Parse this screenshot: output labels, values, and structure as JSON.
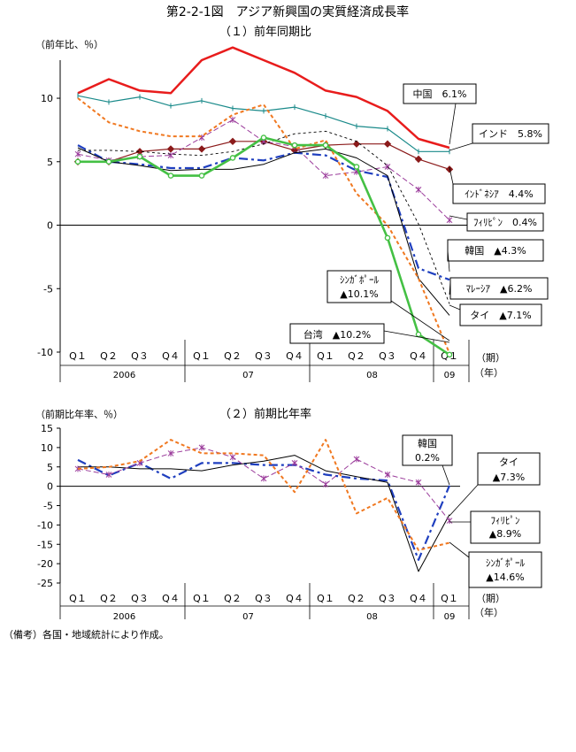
{
  "figure_title": "第2-2-1図　アジア新興国の実質経済成長率",
  "note": "（備考）各国・地域統計により作成。",
  "chart_data": [
    {
      "type": "line",
      "title": "（１）前年同期比",
      "ylabel": "（前年比、％）",
      "ylim": [
        -10,
        13
      ],
      "yticks": [
        10,
        5,
        0,
        -5,
        -10
      ],
      "grid": false,
      "zero_line": true,
      "categories": [
        "Q１",
        "Q２",
        "Q３",
        "Q４",
        "Q１",
        "Q２",
        "Q３",
        "Q４",
        "Q１",
        "Q２",
        "Q３",
        "Q４",
        "Q１"
      ],
      "year_labels": [
        {
          "label": "2006",
          "from": 0,
          "to": 3
        },
        {
          "label": "07",
          "from": 4,
          "to": 7
        },
        {
          "label": "08",
          "from": 8,
          "to": 11
        },
        {
          "label": "09",
          "from": 12,
          "to": 12
        }
      ],
      "period_label": "（期）",
      "year_unit_label": "（年）",
      "series": [
        {
          "name": "中国",
          "color": "#e81c1c",
          "width": 2.5,
          "dash": "",
          "marker": "none",
          "values": [
            10.4,
            11.5,
            10.6,
            10.4,
            13.0,
            14.0,
            13.0,
            12.0,
            10.6,
            10.1,
            9.0,
            6.8,
            6.1
          ]
        },
        {
          "name": "インド",
          "color": "#1a8a8a",
          "width": 1.2,
          "dash": "",
          "marker": "tick",
          "values": [
            10.2,
            9.7,
            10.1,
            9.4,
            9.8,
            9.2,
            9.0,
            9.3,
            8.6,
            7.8,
            7.6,
            5.8,
            5.8
          ]
        },
        {
          "name": "インドネシア",
          "color": "#8b1a1a",
          "width": 1.2,
          "dash": "",
          "marker": "diamond",
          "values": [
            5.0,
            5.0,
            5.8,
            6.0,
            6.0,
            6.6,
            6.6,
            5.9,
            6.3,
            6.4,
            6.4,
            5.2,
            4.4
          ]
        },
        {
          "name": "フィリピン",
          "color": "#9b3c9b",
          "width": 1.0,
          "dash": "6,3",
          "marker": "star",
          "values": [
            5.6,
            5.1,
            5.4,
            5.5,
            6.9,
            8.3,
            6.6,
            6.2,
            3.9,
            4.2,
            4.6,
            2.8,
            0.4
          ]
        },
        {
          "name": "韓国",
          "color": "#1f3fbf",
          "width": 2.2,
          "dash": "10,4,3,4",
          "marker": "none",
          "values": [
            6.3,
            5.0,
            4.8,
            4.5,
            4.5,
            5.3,
            5.1,
            5.7,
            5.5,
            4.3,
            3.8,
            -3.4,
            -4.3
          ]
        },
        {
          "name": "マレーシア",
          "color": "#000000",
          "width": 0.9,
          "dash": "3,3",
          "marker": "none",
          "values": [
            5.9,
            5.9,
            5.8,
            5.6,
            5.5,
            5.8,
            6.4,
            7.2,
            7.4,
            6.6,
            4.7,
            0.1,
            -6.2
          ]
        },
        {
          "name": "タイ",
          "color": "#000000",
          "width": 1.0,
          "dash": "",
          "marker": "none",
          "values": [
            6.1,
            5.0,
            4.7,
            4.3,
            4.4,
            4.4,
            4.8,
            5.7,
            6.0,
            5.3,
            3.9,
            -4.2,
            -7.1
          ]
        },
        {
          "name": "シンガポール",
          "color": "#f07820",
          "width": 2.0,
          "dash": "4,3",
          "marker": "none",
          "values": [
            10.0,
            8.1,
            7.4,
            7.0,
            7.0,
            8.7,
            9.5,
            6.0,
            6.7,
            2.5,
            0.0,
            -4.2,
            -10.1
          ]
        },
        {
          "name": "台湾",
          "color": "#44c044",
          "width": 2.6,
          "dash": "",
          "marker": "circle",
          "values": [
            5.0,
            5.0,
            5.4,
            3.9,
            3.9,
            5.3,
            6.9,
            6.3,
            6.3,
            4.6,
            -1.0,
            -8.6,
            -10.2
          ]
        }
      ],
      "labels": [
        {
          "text": "中国　6.1%"
        },
        {
          "text": "インド　5.8%"
        },
        {
          "text": "ｲﾝﾄﾞﾈｼｱ　4.4%"
        },
        {
          "text": "ﾌｨﾘﾋﾟﾝ　0.4%"
        },
        {
          "text": "韓国　▲4.3%"
        },
        {
          "text": "ｼﾝｶﾞﾎﾟｰﾙ"
        },
        {
          "text": "▲10.1%"
        },
        {
          "text": "ﾏﾚｰｼｱ　▲6.2%"
        },
        {
          "text": "タイ　▲7.1%"
        },
        {
          "text": "台湾　▲10.2%"
        }
      ]
    },
    {
      "type": "line",
      "title": "（２）前期比年率",
      "ylabel": "（前期比年率、％）",
      "ylim": [
        -25,
        15
      ],
      "yticks": [
        15,
        10,
        5,
        0,
        -5,
        -10,
        -15,
        -20,
        -25
      ],
      "grid": false,
      "zero_line": true,
      "categories": [
        "Q１",
        "Q２",
        "Q３",
        "Q４",
        "Q１",
        "Q２",
        "Q３",
        "Q４",
        "Q１",
        "Q２",
        "Q３",
        "Q４",
        "Q１"
      ],
      "year_labels": [
        {
          "label": "2006",
          "from": 0,
          "to": 3
        },
        {
          "label": "07",
          "from": 4,
          "to": 7
        },
        {
          "label": "08",
          "from": 8,
          "to": 11
        },
        {
          "label": "09",
          "from": 12,
          "to": 12
        }
      ],
      "period_label": "（期）",
      "year_unit_label": "（年）",
      "series": [
        {
          "name": "韓国",
          "color": "#1f3fbf",
          "width": 2.2,
          "dash": "10,4,3,4",
          "marker": "none",
          "values": [
            6.8,
            2.8,
            6.0,
            2.0,
            6.0,
            6.0,
            5.5,
            5.5,
            3.0,
            2.0,
            1.5,
            -19.0,
            0.2
          ]
        },
        {
          "name": "タイ",
          "color": "#000000",
          "width": 1.0,
          "dash": "",
          "marker": "none",
          "values": [
            5.0,
            5.0,
            4.5,
            4.5,
            4.0,
            5.5,
            6.5,
            8.0,
            4.0,
            2.5,
            1.0,
            -22.0,
            -7.3
          ]
        },
        {
          "name": "フィリピン",
          "color": "#9b3c9b",
          "width": 1.0,
          "dash": "6,3",
          "marker": "star",
          "values": [
            4.5,
            3.0,
            6.0,
            8.5,
            10.0,
            7.5,
            2.0,
            6.0,
            0.5,
            7.0,
            3.0,
            1.0,
            -8.9
          ]
        },
        {
          "name": "シンガポール",
          "color": "#f07820",
          "width": 2.0,
          "dash": "4,3",
          "marker": "none",
          "values": [
            4.5,
            5.0,
            6.5,
            12.0,
            8.5,
            8.5,
            8.0,
            -1.5,
            12.0,
            -7.0,
            -3.0,
            -16.5,
            -14.6
          ]
        }
      ],
      "labels": [
        {
          "text": "韓国"
        },
        {
          "text": "0.2%"
        },
        {
          "text": "タイ"
        },
        {
          "text": "▲7.3%"
        },
        {
          "text": "ﾌｨﾘﾋﾟﾝ"
        },
        {
          "text": "▲8.9%"
        },
        {
          "text": "ｼﾝｶﾞﾎﾟｰﾙ"
        },
        {
          "text": "▲14.6%"
        }
      ]
    }
  ]
}
